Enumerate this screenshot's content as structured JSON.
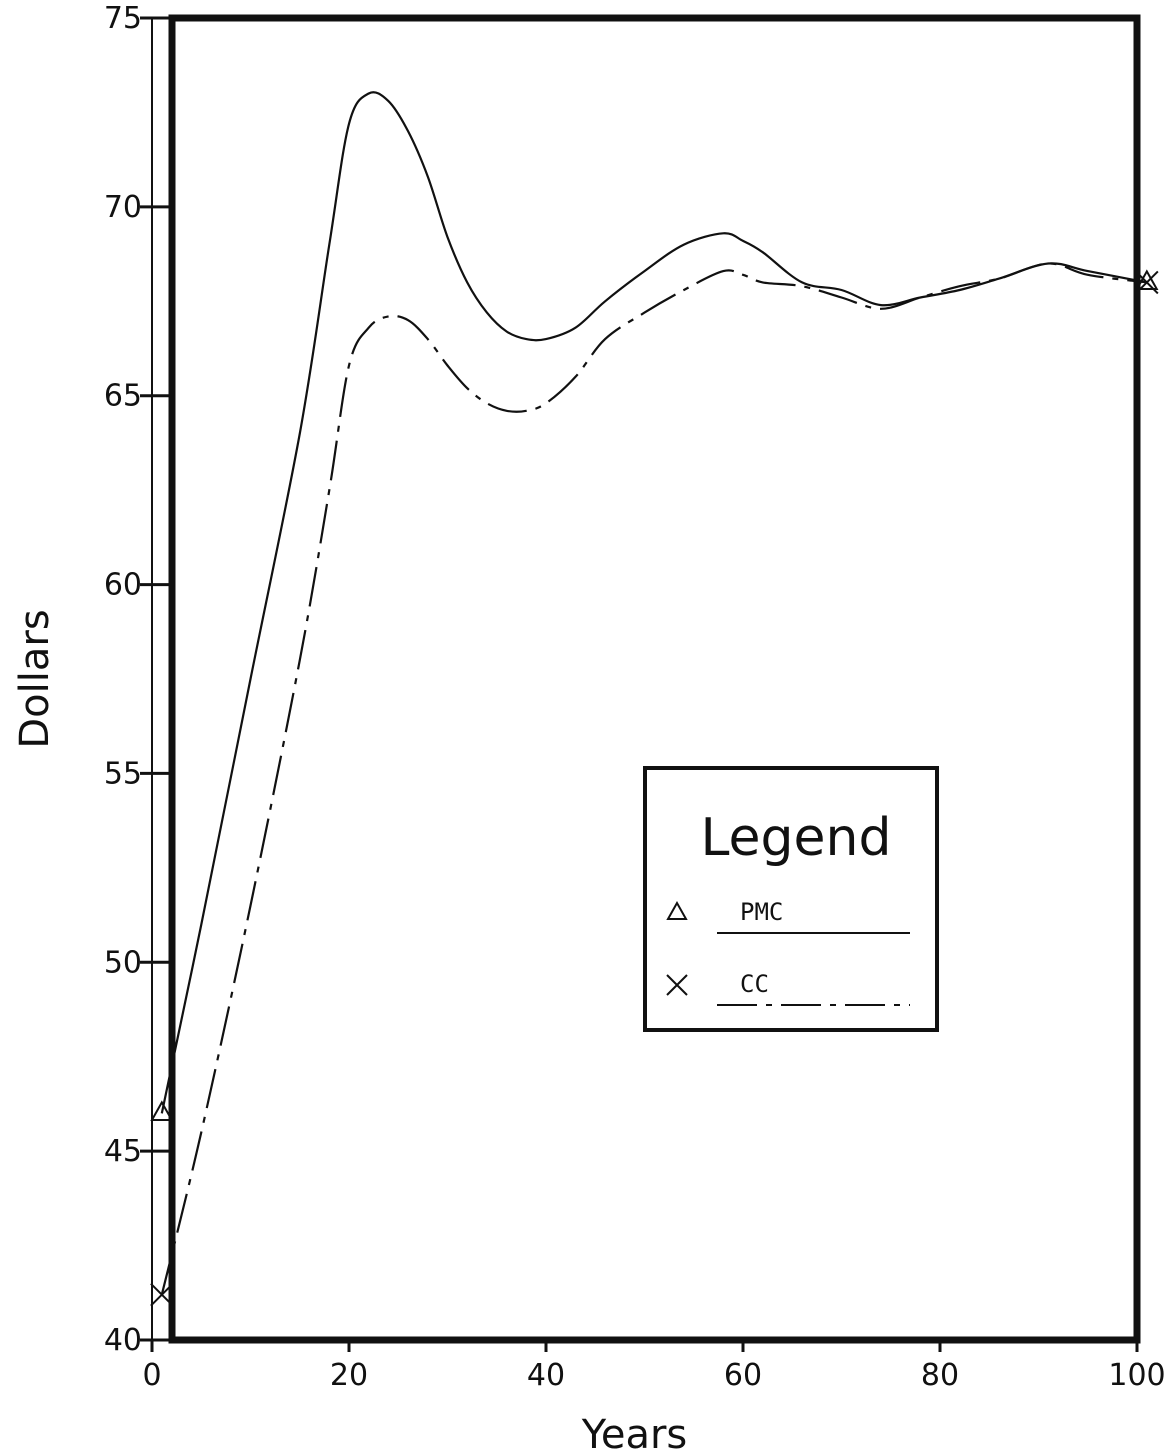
{
  "chart_data": {
    "type": "line",
    "title": "",
    "xlabel": "Years",
    "ylabel": "Dollars",
    "xlim": [
      0,
      100
    ],
    "ylim": [
      40,
      75
    ],
    "x_ticks": [
      0,
      20,
      40,
      60,
      80,
      100
    ],
    "y_ticks": [
      40,
      45,
      50,
      55,
      60,
      65,
      70,
      75
    ],
    "x_tick_labels": [
      "0",
      "20",
      "40",
      "60",
      "80",
      "100"
    ],
    "y_tick_labels": [
      "40",
      "45",
      "50",
      "55",
      "60",
      "65",
      "70",
      "75"
    ],
    "grid": false,
    "legend": {
      "title": "Legend",
      "position": "center-right",
      "entries": [
        {
          "marker": "triangle",
          "label": "PMC",
          "line": "solid"
        },
        {
          "marker": "x",
          "label": "CC",
          "line": "dashed"
        }
      ]
    },
    "series": [
      {
        "name": "PMC",
        "marker": "triangle",
        "line": "solid",
        "x": [
          1,
          5,
          10,
          15,
          18,
          20,
          22,
          24,
          26,
          28,
          30,
          32,
          34,
          36,
          38,
          40,
          43,
          46,
          50,
          54,
          58,
          60,
          62,
          66,
          70,
          74,
          78,
          82,
          86,
          91,
          95,
          101
        ],
        "y": [
          46.0,
          51.0,
          57.5,
          64.0,
          69.0,
          72.2,
          73.0,
          72.8,
          72.0,
          70.8,
          69.2,
          68.0,
          67.2,
          66.7,
          66.5,
          66.5,
          66.8,
          67.5,
          68.3,
          69.0,
          69.3,
          69.1,
          68.8,
          68.0,
          67.8,
          67.4,
          67.6,
          67.8,
          68.1,
          68.5,
          68.3,
          68.0
        ]
      },
      {
        "name": "CC",
        "marker": "x",
        "line": "dashed",
        "x": [
          1,
          5,
          10,
          15,
          18,
          20,
          22,
          24,
          26,
          28,
          30,
          32,
          34,
          36,
          38,
          40,
          43,
          46,
          50,
          54,
          58,
          60,
          62,
          66,
          70,
          74,
          78,
          82,
          86,
          91,
          95,
          101
        ],
        "y": [
          41.2,
          45.5,
          51.5,
          58.0,
          62.5,
          65.8,
          66.8,
          67.1,
          67.0,
          66.5,
          65.8,
          65.2,
          64.8,
          64.6,
          64.6,
          64.8,
          65.5,
          66.5,
          67.2,
          67.8,
          68.3,
          68.2,
          68.0,
          67.9,
          67.6,
          67.3,
          67.6,
          67.9,
          68.1,
          68.5,
          68.2,
          68.0
        ]
      }
    ],
    "colors": {
      "line": "#111111",
      "background": "#ffffff"
    }
  }
}
